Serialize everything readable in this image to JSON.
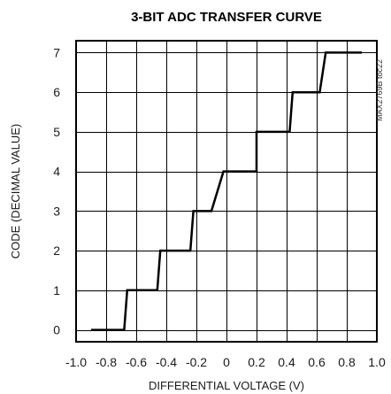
{
  "chart_data": {
    "type": "line",
    "title": "3-BIT ADC TRANSFER CURVE",
    "xlabel": "DIFFERENTIAL VOLTAGE (V)",
    "ylabel": "CODE (DECIMAL VALUE)",
    "watermark": "MAX2769B toc22",
    "xlim": [
      -1.0,
      1.0
    ],
    "ylim": [
      -0.3,
      7.3
    ],
    "grid": true,
    "x_ticks": [
      -1.0,
      -0.8,
      -0.6,
      -0.4,
      -0.2,
      0,
      0.2,
      0.4,
      0.6,
      0.8,
      1.0
    ],
    "x_tick_labels": [
      "-1.0",
      "-0.8",
      "-0.6",
      "-0.4",
      "-0.2",
      "0",
      "0.2",
      "0.4",
      "0.6",
      "0.8",
      "1.0"
    ],
    "y_ticks": [
      0,
      1,
      2,
      3,
      4,
      5,
      6,
      7
    ],
    "y_tick_labels": [
      "0",
      "1",
      "2",
      "3",
      "4",
      "5",
      "6",
      "7"
    ],
    "series": [
      {
        "x": [
          -0.9,
          -0.68,
          -0.66,
          -0.46,
          -0.44,
          -0.24,
          -0.22,
          -0.1,
          -0.02,
          0.0,
          0.1,
          0.2,
          0.2,
          0.42,
          0.44,
          0.62,
          0.66,
          0.9
        ],
        "y": [
          0,
          0,
          1,
          1,
          2,
          2,
          3,
          3,
          4,
          4,
          4,
          4,
          5,
          5,
          6,
          6,
          7,
          7
        ]
      }
    ]
  }
}
